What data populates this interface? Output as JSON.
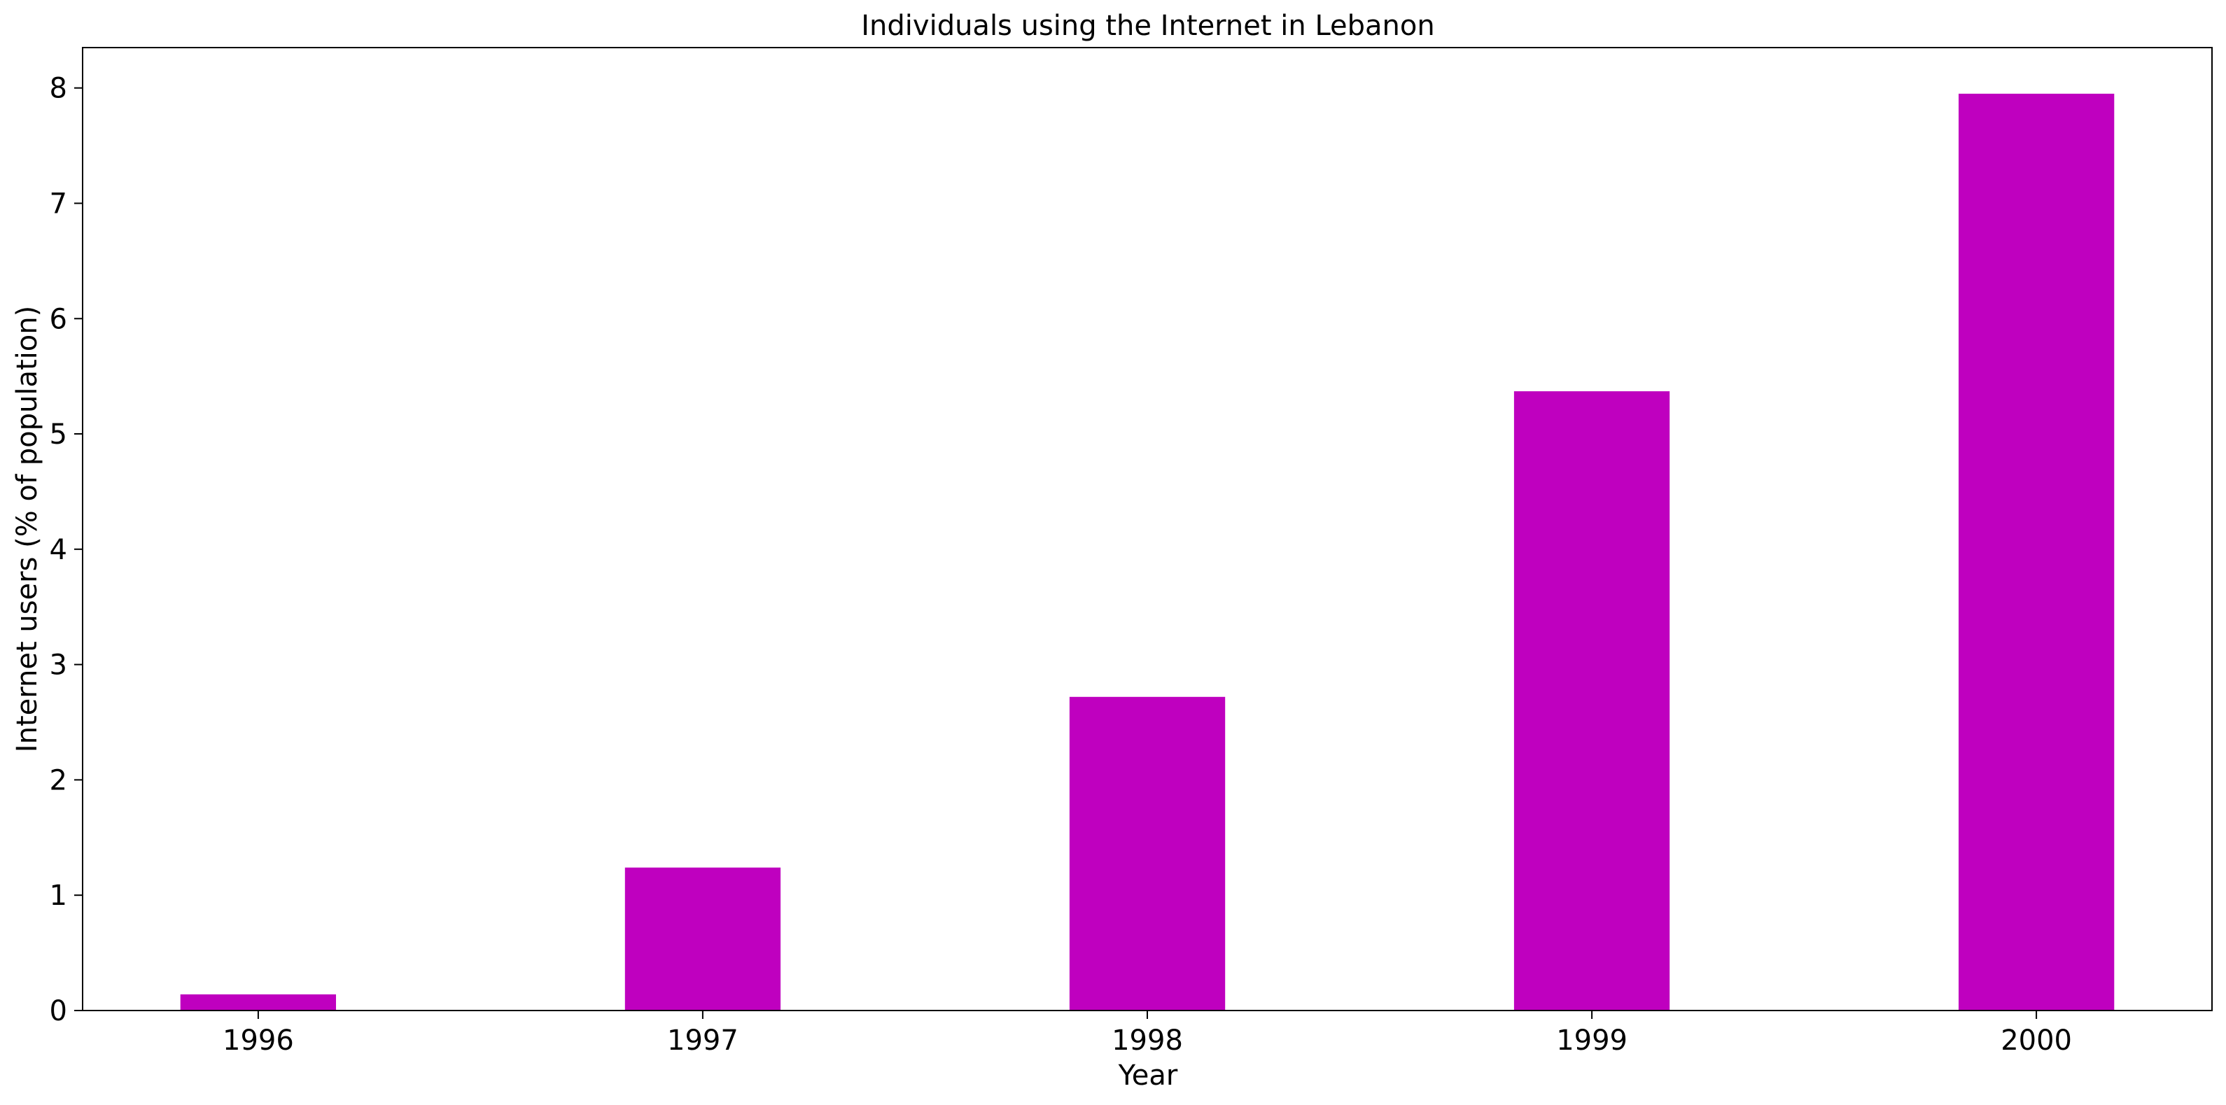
{
  "chart_data": {
    "type": "bar",
    "title": "Individuals using the Internet in Lebanon",
    "xlabel": "Year",
    "ylabel": "Internet users (% of population)",
    "categories": [
      "1996",
      "1997",
      "1998",
      "1999",
      "2000"
    ],
    "values": [
      0.14,
      1.24,
      2.72,
      5.37,
      7.95
    ],
    "ylim": [
      0,
      8.35
    ],
    "yticks": [
      0,
      1,
      2,
      3,
      4,
      5,
      6,
      7,
      8
    ],
    "grid": false,
    "legend": "none",
    "bar_color": "#bf00bf"
  }
}
